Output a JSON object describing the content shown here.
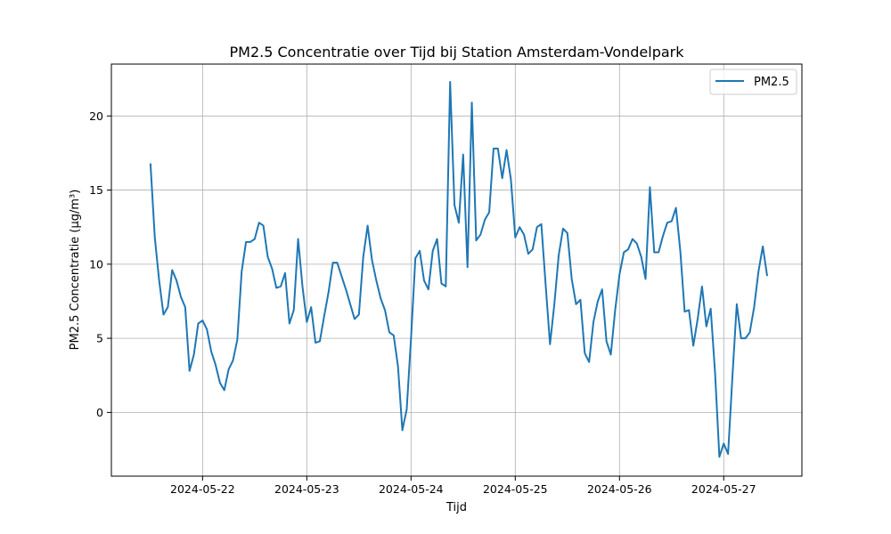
{
  "chart_data": {
    "type": "line",
    "title": "PM2.5 Concentratie over Tijd bij Station Amsterdam-Vondelpark",
    "xlabel": "Tijd",
    "ylabel": "PM2.5 Concentratie (µg/m³)",
    "xlim": [
      "2024-05-21 03:00",
      "2024-05-27 18:00"
    ],
    "ylim": [
      -4.3,
      23.5
    ],
    "x_ticks": [
      "2024-05-22",
      "2024-05-23",
      "2024-05-24",
      "2024-05-25",
      "2024-05-26",
      "2024-05-27"
    ],
    "y_ticks": [
      0,
      5,
      10,
      15,
      20
    ],
    "grid": true,
    "legend_position": "top-right",
    "series": [
      {
        "name": "PM2.5",
        "color": "#1f77b4",
        "start": "2024-05-21 12:00",
        "interval_hours": 1,
        "values": [
          16.8,
          11.8,
          8.9,
          6.6,
          7.1,
          9.6,
          8.9,
          7.8,
          7.1,
          2.8,
          3.9,
          6.0,
          6.2,
          5.6,
          4.1,
          3.2,
          2.0,
          1.5,
          2.9,
          3.5,
          4.9,
          9.5,
          11.5,
          11.5,
          11.7,
          12.8,
          12.6,
          10.5,
          9.7,
          8.4,
          8.5,
          9.4,
          6.0,
          6.9,
          11.7,
          8.5,
          6.1,
          7.1,
          4.7,
          4.8,
          6.5,
          8.1,
          10.1,
          10.1,
          9.2,
          8.3,
          7.3,
          6.3,
          6.6,
          10.5,
          12.6,
          10.3,
          8.9,
          7.7,
          6.9,
          5.4,
          5.2,
          3.1,
          -1.2,
          0.2,
          5.0,
          10.4,
          10.9,
          8.9,
          8.3,
          10.9,
          11.7,
          8.7,
          8.5,
          22.3,
          14.0,
          12.8,
          17.4,
          9.8,
          20.9,
          11.6,
          12.0,
          13.0,
          13.5,
          17.8,
          17.8,
          15.8,
          17.7,
          15.7,
          11.8,
          12.5,
          12.0,
          10.7,
          11.0,
          12.5,
          12.7,
          8.6,
          4.6,
          7.3,
          10.6,
          12.4,
          12.1,
          9.0,
          7.3,
          7.6,
          4.0,
          3.4,
          6.1,
          7.5,
          8.3,
          4.8,
          3.9,
          6.9,
          9.3,
          10.8,
          11.0,
          11.7,
          11.4,
          10.5,
          9.0,
          15.2,
          10.8,
          10.8,
          11.9,
          12.8,
          12.9,
          13.8,
          10.9,
          6.8,
          6.9,
          4.5,
          6.3,
          8.5,
          5.8,
          7.0,
          2.7,
          -3.0,
          -2.1,
          -2.8,
          2.4,
          7.3,
          5.0,
          5.0,
          5.4,
          7.1,
          9.5,
          11.2,
          9.2
        ]
      }
    ]
  }
}
